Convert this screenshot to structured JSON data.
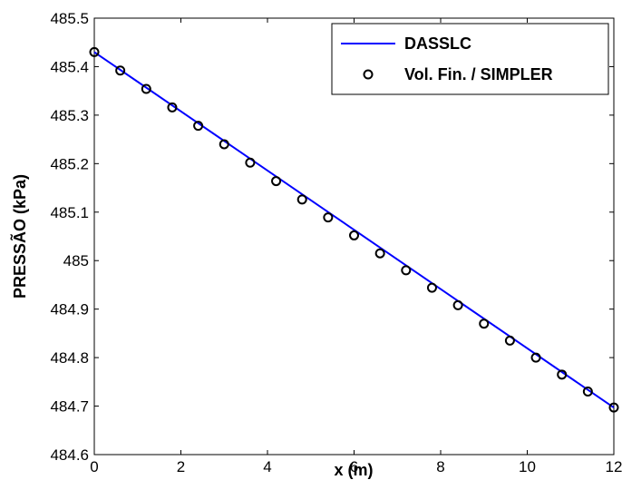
{
  "chart_data": {
    "type": "line",
    "xlabel": "x (m)",
    "ylabel": "PRESSÃO (kPa)",
    "xlim": [
      0,
      12
    ],
    "ylim": [
      484.6,
      485.5
    ],
    "xticks": [
      0,
      2,
      4,
      6,
      8,
      10,
      12
    ],
    "xtick_labels": [
      "0",
      "2",
      "4",
      "6",
      "8",
      "10",
      "12"
    ],
    "yticks": [
      484.6,
      484.7,
      484.8,
      484.9,
      485.0,
      485.1,
      485.2,
      485.3,
      485.4,
      485.5
    ],
    "ytick_labels": [
      "484.6",
      "484.7",
      "484.8",
      "484.9",
      "485",
      "485.1",
      "485.2",
      "485.3",
      "485.4",
      "485.5"
    ],
    "grid": false,
    "legend_position": "top-right",
    "series": [
      {
        "name": "DASSLC",
        "style": "line",
        "color": "#0000ff",
        "x": [
          0,
          12
        ],
        "y": [
          485.43,
          484.697
        ]
      },
      {
        "name": "Vol. Fin. / SIMPLER",
        "style": "marker",
        "color": "#000000",
        "x": [
          0,
          0.6,
          1.2,
          1.8,
          2.4,
          3.0,
          3.6,
          4.2,
          4.8,
          5.4,
          6.0,
          6.6,
          7.2,
          7.8,
          8.4,
          9.0,
          9.6,
          10.2,
          10.8,
          11.4,
          12.0
        ],
        "y": [
          485.43,
          485.392,
          485.354,
          485.316,
          485.278,
          485.24,
          485.202,
          485.164,
          485.126,
          485.089,
          485.052,
          485.015,
          484.98,
          484.944,
          484.908,
          484.87,
          484.835,
          484.8,
          484.765,
          484.73,
          484.697
        ]
      }
    ]
  }
}
